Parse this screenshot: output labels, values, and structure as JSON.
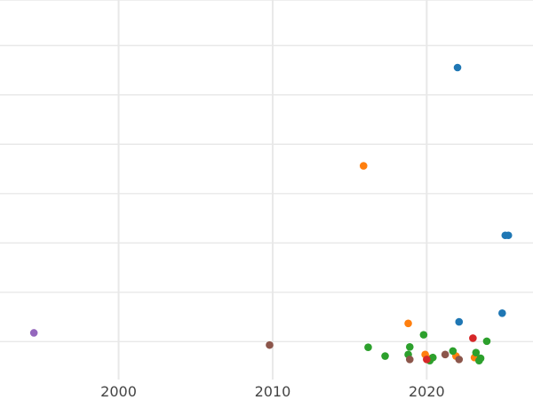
{
  "chart_data": {
    "type": "scatter",
    "title": "",
    "xlabel": "",
    "ylabel": "",
    "xlim": [
      1992.3,
      2026.9
    ],
    "ylim": [
      0.0,
      1.0
    ],
    "grid": true,
    "x_ticks": [
      2000,
      2010,
      2020
    ],
    "x_tick_labels": [
      "2000",
      "2010",
      "2020"
    ],
    "y_gridlines": [
      0.1,
      0.23,
      0.36,
      0.49,
      0.62,
      0.75,
      0.88,
      1.0
    ],
    "series": [
      {
        "color": "#1f77b4",
        "points": [
          [
            2022.0,
            0.822
          ],
          [
            2025.1,
            0.38
          ],
          [
            2025.3,
            0.38
          ],
          [
            2024.9,
            0.175
          ],
          [
            2022.1,
            0.152
          ]
        ]
      },
      {
        "color": "#ff7f0e",
        "points": [
          [
            2015.9,
            0.563
          ],
          [
            2018.8,
            0.148
          ],
          [
            2019.9,
            0.066
          ],
          [
            2020.3,
            0.056
          ],
          [
            2021.9,
            0.062
          ],
          [
            2023.1,
            0.058
          ]
        ]
      },
      {
        "color": "#2ca02c",
        "points": [
          [
            2019.8,
            0.118
          ],
          [
            2023.9,
            0.101
          ],
          [
            2016.2,
            0.085
          ],
          [
            2018.9,
            0.086
          ],
          [
            2017.3,
            0.062
          ],
          [
            2018.8,
            0.066
          ],
          [
            2020.4,
            0.058
          ],
          [
            2021.7,
            0.075
          ],
          [
            2023.2,
            0.071
          ],
          [
            2023.5,
            0.056
          ],
          [
            2020.2,
            0.05
          ],
          [
            2023.4,
            0.05
          ]
        ]
      },
      {
        "color": "#d62728",
        "points": [
          [
            2023.0,
            0.109
          ],
          [
            2020.0,
            0.053
          ]
        ]
      },
      {
        "color": "#9467bd",
        "points": [
          [
            1994.5,
            0.123
          ]
        ]
      },
      {
        "color": "#8c564b",
        "points": [
          [
            2009.8,
            0.091
          ],
          [
            2021.2,
            0.066
          ],
          [
            2018.9,
            0.053
          ],
          [
            2022.1,
            0.053
          ]
        ]
      }
    ]
  }
}
